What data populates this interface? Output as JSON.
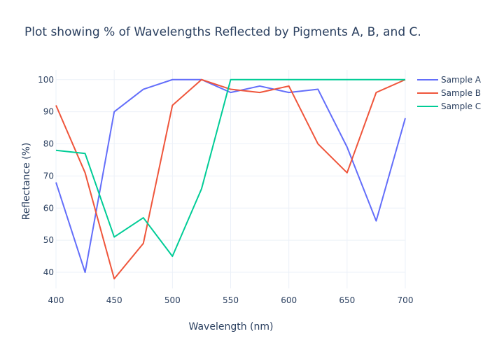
{
  "chart_data": {
    "type": "line",
    "title": "Plot showing % of Wavelengths Reflected by Pigments A, B, and C.",
    "xlabel": "Wavelength (nm)",
    "ylabel": "Reflectance (%)",
    "xlim": [
      400,
      700
    ],
    "ylim": [
      35,
      103
    ],
    "x_ticks": [
      400,
      450,
      500,
      550,
      600,
      650,
      700
    ],
    "y_ticks": [
      40,
      50,
      60,
      70,
      80,
      90,
      100
    ],
    "grid": true,
    "legend_position": "top-right",
    "x": [
      400,
      425,
      450,
      475,
      500,
      525,
      550,
      575,
      600,
      625,
      650,
      675,
      700
    ],
    "series": [
      {
        "name": "Sample A",
        "color": "#636efa",
        "values": [
          68,
          40,
          90,
          97,
          100,
          100,
          96,
          98,
          96,
          97,
          79,
          56,
          88
        ]
      },
      {
        "name": "Sample B",
        "color": "#ef553b",
        "values": [
          92,
          71,
          38,
          49,
          92,
          100,
          97,
          96,
          98,
          80,
          71,
          96,
          100
        ]
      },
      {
        "name": "Sample C",
        "color": "#00cc96",
        "values": [
          78,
          77,
          51,
          57,
          45,
          66,
          100,
          100,
          100,
          100,
          100,
          100,
          100
        ]
      }
    ]
  }
}
